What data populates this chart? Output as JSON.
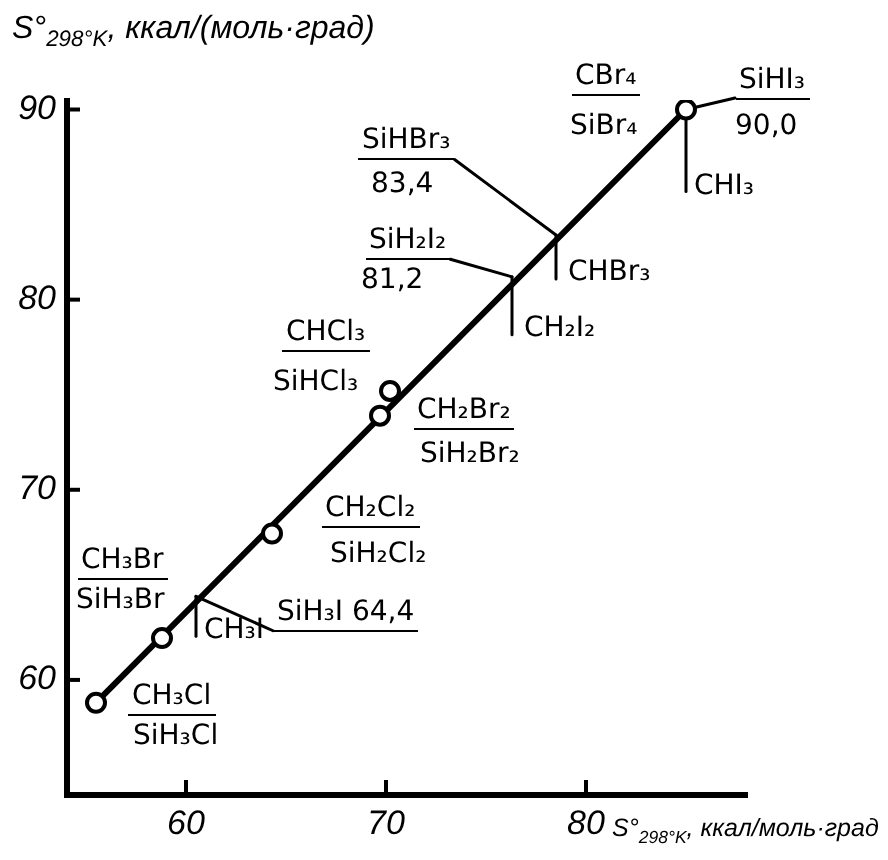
{
  "chart_data": {
    "type": "scatter",
    "xlabel": "S°$_{298°K}$, ккал/моль·град",
    "ylabel": "S°$_{298°K}$, ккал/(моль·град)",
    "xlim": [
      54,
      88
    ],
    "ylim": [
      54,
      90.5
    ],
    "xticks": [
      60,
      70,
      80
    ],
    "yticks": [
      60,
      70,
      80,
      90
    ],
    "marker": "circle",
    "series": [
      {
        "type": "line",
        "x": [
          55.5,
          85.0
        ],
        "values": [
          58.8,
          90.0
        ],
        "color": "#000000",
        "marker": "none"
      },
      {
        "type": "scatter",
        "x": [
          55.5,
          58.8,
          64.3,
          69.7,
          70.2,
          85.0
        ],
        "values": [
          58.8,
          62.2,
          67.7,
          73.9,
          75.2,
          90.0
        ],
        "color": "#000000"
      }
    ],
    "annotations": [
      {
        "text": "CH₃Cl",
        "x": 55.5,
        "y": 58.8
      },
      {
        "text": "SiH₃Cl",
        "x": 55.5,
        "y": 58.8
      },
      {
        "text": "CH₃Br",
        "x": 58.8,
        "y": 62.2
      },
      {
        "text": "SiH₃Br",
        "x": 58.8,
        "y": 62.2
      },
      {
        "text": "CH₃I",
        "x": 60.5,
        "y": 64.4
      },
      {
        "text": "SiH₃I 64,4",
        "x": 60.5,
        "y": 64.4
      },
      {
        "text": "CH₂Cl₂",
        "x": 64.3,
        "y": 67.7
      },
      {
        "text": "SiH₂Cl₂",
        "x": 64.3,
        "y": 67.7
      },
      {
        "text": "CH₂Br₂",
        "x": 69.7,
        "y": 73.9
      },
      {
        "text": "SiH₂Br₂",
        "x": 69.7,
        "y": 73.9
      },
      {
        "text": "CHCl₃",
        "x": 70.2,
        "y": 75.2
      },
      {
        "text": "SiHCl₃",
        "x": 70.2,
        "y": 75.2
      },
      {
        "text": "SiH₂I₂",
        "x": 76.3,
        "y": 81.2
      },
      {
        "text": "81,2",
        "x": 76.3,
        "y": 81.2
      },
      {
        "text": "CH₂I₂",
        "x": 76.3,
        "y": 81.2
      },
      {
        "text": "SiHBr₃",
        "x": 78.5,
        "y": 83.4
      },
      {
        "text": "83,4",
        "x": 78.5,
        "y": 83.4
      },
      {
        "text": "CHBr₃",
        "x": 78.5,
        "y": 83.4
      },
      {
        "text": "CBr₄",
        "x": 85.0,
        "y": 90.0
      },
      {
        "text": "SiBr₄",
        "x": 85.0,
        "y": 90.0
      },
      {
        "text": "SiHI₃",
        "x": 85.0,
        "y": 90.0
      },
      {
        "text": "90,0",
        "x": 85.0,
        "y": 90.0
      },
      {
        "text": "CHI₃",
        "x": 85.0,
        "y": 90.0
      }
    ]
  }
}
